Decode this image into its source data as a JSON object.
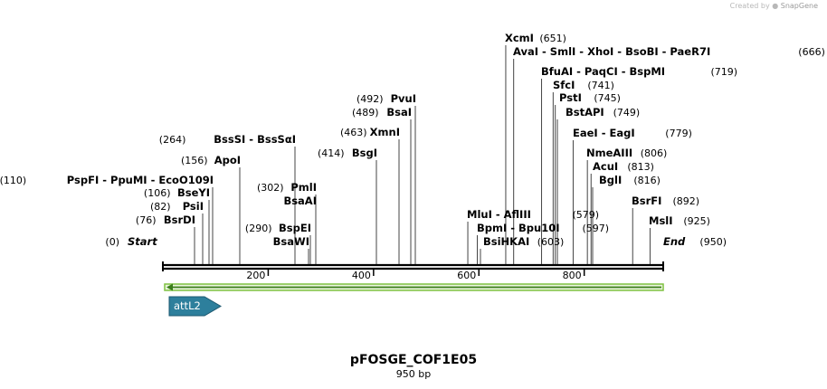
{
  "credit": {
    "prefix": "Created by",
    "brand": "SnapGene"
  },
  "plasmid": {
    "name": "pFOSGE_COF1E05",
    "length_label": "950 bp",
    "length_bp": 950
  },
  "ends": {
    "start_label": "Start",
    "start_pos": "(0)",
    "end_label": "End",
    "end_pos": "(950)"
  },
  "ticks": [
    {
      "bp": 200,
      "label": "200"
    },
    {
      "bp": 400,
      "label": "400"
    },
    {
      "bp": 600,
      "label": "600"
    },
    {
      "bp": 800,
      "label": "800"
    }
  ],
  "feature": {
    "name": "attL2",
    "start_bp": 1,
    "end_bp": 950,
    "direction": "reverse",
    "color": "#7fc241",
    "box_color": "#2d7f9c"
  },
  "sites": [
    {
      "id": "110",
      "left": true,
      "pos": "(110)",
      "label": "PspFI  -  PpuMI  -  EcoO109I",
      "bp": 110
    },
    {
      "id": "106",
      "left": true,
      "pos": "(106)",
      "label": "BseYI",
      "bp": 106
    },
    {
      "id": "82",
      "left": true,
      "pos": "(82)",
      "label": "PsiI",
      "bp": 82
    },
    {
      "id": "76",
      "left": true,
      "pos": "(76)",
      "label": "BsrDI",
      "bp": 76
    },
    {
      "id": "156",
      "left": true,
      "pos": "(156)",
      "label": "ApoI",
      "bp": 156
    },
    {
      "id": "264",
      "left": true,
      "pos": "(264)",
      "label": "BssSI  -  BssSαI",
      "bp": 264
    },
    {
      "id": "302",
      "left": true,
      "pos": "(302)",
      "label": "PmlI",
      "bp": 302
    },
    {
      "id": "302b",
      "left": true,
      "pos": "",
      "label": "BsaAI",
      "bp": 302
    },
    {
      "id": "290",
      "left": true,
      "pos": "(290)",
      "label": "BspEI",
      "bp": 290
    },
    {
      "id": "290b",
      "left": true,
      "pos": "",
      "label": "BsaWI",
      "bp": 290
    },
    {
      "id": "414",
      "left": true,
      "pos": "(414)",
      "label": "BsgI",
      "bp": 414
    },
    {
      "id": "463",
      "left": true,
      "pos": "(463)",
      "label": "XmnI",
      "bp": 463
    },
    {
      "id": "489",
      "left": true,
      "pos": "(489)",
      "label": "BsaI",
      "bp": 489
    },
    {
      "id": "492",
      "left": true,
      "pos": "(492)",
      "label": "PvuI",
      "bp": 492
    },
    {
      "id": "651",
      "left": false,
      "pos": "(651)",
      "label": "XcmI",
      "bp": 651
    },
    {
      "id": "666",
      "left": false,
      "pos": "(666)",
      "label": "AvaI  -  SmlI  -  XhoI  -  BsoBI  -  PaeR7I",
      "bp": 666
    },
    {
      "id": "719",
      "left": false,
      "pos": "(719)",
      "label": "BfuAI  -  PaqCI  -  BspMI",
      "bp": 719
    },
    {
      "id": "741",
      "left": false,
      "pos": "(741)",
      "label": "SfcI",
      "bp": 741
    },
    {
      "id": "745",
      "left": false,
      "pos": "(745)",
      "label": "PstI",
      "bp": 745
    },
    {
      "id": "749",
      "left": false,
      "pos": "(749)",
      "label": "BstAPI",
      "bp": 749
    },
    {
      "id": "779",
      "left": false,
      "pos": "(779)",
      "label": "EaeI  -  EagI",
      "bp": 779
    },
    {
      "id": "806",
      "left": false,
      "pos": "(806)",
      "label": "NmeAIII",
      "bp": 806
    },
    {
      "id": "813",
      "left": false,
      "pos": "(813)",
      "label": "AcuI",
      "bp": 813
    },
    {
      "id": "816",
      "left": false,
      "pos": "(816)",
      "label": "BglI",
      "bp": 816
    },
    {
      "id": "579",
      "left": false,
      "pos": "(579)",
      "label": "MluI  -  AflIII",
      "bp": 579
    },
    {
      "id": "597",
      "left": false,
      "pos": "(597)",
      "label": "BpmI  -  Bpu10I",
      "bp": 597
    },
    {
      "id": "603",
      "left": false,
      "pos": "(603)",
      "label": "BsiHKAI",
      "bp": 603
    },
    {
      "id": "892",
      "left": false,
      "pos": "(892)",
      "label": "BsrFI",
      "bp": 892
    },
    {
      "id": "925",
      "left": false,
      "pos": "(925)",
      "label": "MslI",
      "bp": 925
    }
  ]
}
